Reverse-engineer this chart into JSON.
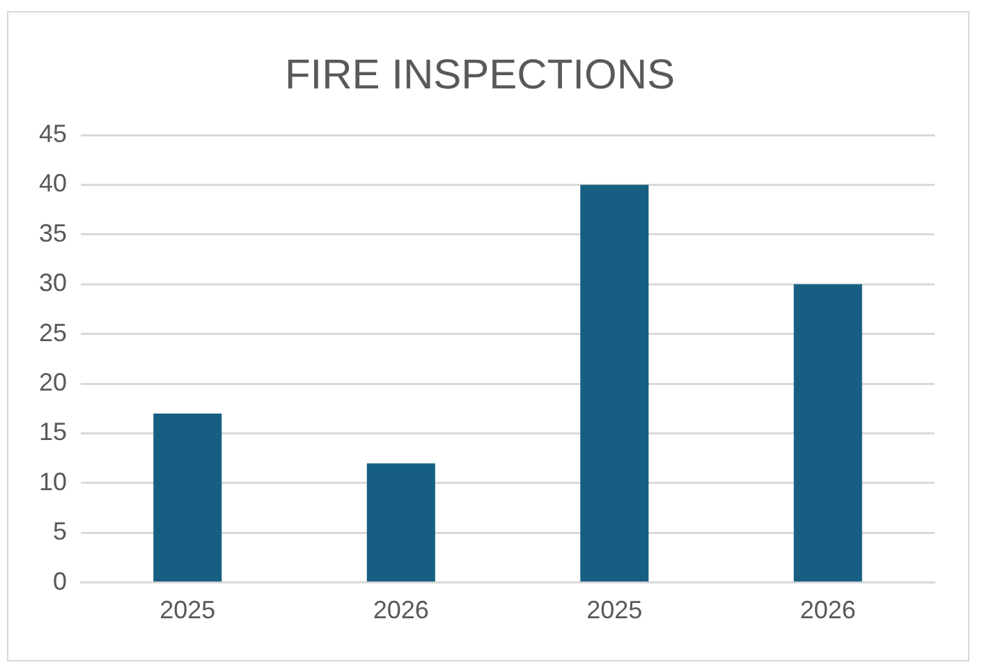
{
  "chart_data": {
    "type": "bar",
    "title": "FIRE INSPECTIONS",
    "categories": [
      "2025",
      "2026",
      "2025",
      "2026"
    ],
    "values": [
      17,
      12,
      40,
      30
    ],
    "color": "#175f82",
    "ylim": [
      0,
      45
    ],
    "yticks": [
      0,
      5,
      10,
      15,
      20,
      25,
      30,
      35,
      40,
      45
    ],
    "grid": "y"
  }
}
